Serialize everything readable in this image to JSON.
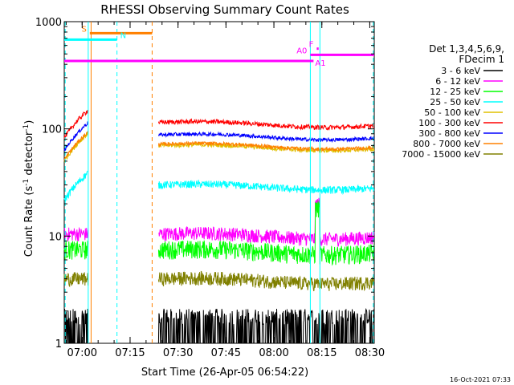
{
  "chart_data": {
    "type": "line",
    "title": "RHESSI Observing Summary Count Rates",
    "xlabel": "Start Time (26-Apr-05 06:54:22)",
    "ylabel_main": "Count Rate (s",
    "ylabel_sup1": "-1",
    "ylabel_mid": " detector",
    "ylabel_sup2": "-1",
    "ylabel_end": ")",
    "yscale": "log",
    "ylim": [
      1,
      1000
    ],
    "xlim_min": [
      0,
      97
    ],
    "y_ticks": [
      {
        "value": 1,
        "label": "1"
      },
      {
        "value": 10,
        "label": "10"
      },
      {
        "value": 100,
        "label": "100"
      },
      {
        "value": 1000,
        "label": "1000"
      }
    ],
    "x_ticks": [
      {
        "min": 5.6,
        "label": "07:00"
      },
      {
        "min": 20.6,
        "label": "07:15"
      },
      {
        "min": 35.6,
        "label": "07:30"
      },
      {
        "min": 50.6,
        "label": "07:45"
      },
      {
        "min": 65.6,
        "label": "08:00"
      },
      {
        "min": 80.6,
        "label": "08:15"
      },
      {
        "min": 95.6,
        "label": "08:30"
      }
    ],
    "legend": {
      "title1": "Det 1,3,4,5,6,9,",
      "title2": "FDecim 1",
      "placement": "right"
    },
    "series": [
      {
        "name": "3 - 6 keV",
        "color": "#000000",
        "base": 1.5,
        "jitter": 0.6,
        "spike": 6
      },
      {
        "name": "6 - 12 keV",
        "color": "#ff00ff",
        "base": 10.5,
        "jitter": 0.15,
        "spike": 20
      },
      {
        "name": "12 - 25 keV",
        "color": "#00ff00",
        "base": 7.5,
        "jitter": 0.2,
        "spike": 18
      },
      {
        "name": "25 - 50 keV",
        "color": "#00ffff",
        "base": 30,
        "jitter": 0.08,
        "spike": 0
      },
      {
        "name": "50 - 100 keV",
        "color": "#e0c000",
        "base": 70,
        "jitter": 0.05,
        "spike": 0
      },
      {
        "name": "100 - 300 keV",
        "color": "#ff0000",
        "base": 115,
        "jitter": 0.05,
        "spike": 0
      },
      {
        "name": "300 - 800 keV",
        "color": "#0000ff",
        "base": 88,
        "jitter": 0.04,
        "spike": 0
      },
      {
        "name": "800 - 7000 keV",
        "color": "#ff8000",
        "base": 72,
        "jitter": 0.04,
        "spike": 0
      },
      {
        "name": "7000 - 15000 keV",
        "color": "#808000",
        "base": 4,
        "jitter": 0.15,
        "spike": 0
      }
    ],
    "segments_min": [
      [
        0,
        7.5
      ],
      [
        29.5,
        97
      ]
    ],
    "flags": [
      {
        "label": "S",
        "color": "#ff8000",
        "y_level": 780,
        "from_min": 8,
        "to_min": 27.5
      },
      {
        "label": "N",
        "color": "#00ffff",
        "y_level": 680,
        "from_min": 0,
        "to_min": 16.5
      },
      {
        "label": "A0",
        "color": "#ff00ff",
        "y_level": 490,
        "from_min": 77,
        "to_min": 97
      },
      {
        "label": "F",
        "color": "#ff00ff",
        "y_level": 560,
        "from_min": 79,
        "to_min": 79.6
      },
      {
        "label": "A1",
        "color": "#ff00ff",
        "y_level": 430,
        "from_min": 0,
        "to_min": 78
      }
    ],
    "timestamp": "16-Oct-2021 07:33"
  }
}
